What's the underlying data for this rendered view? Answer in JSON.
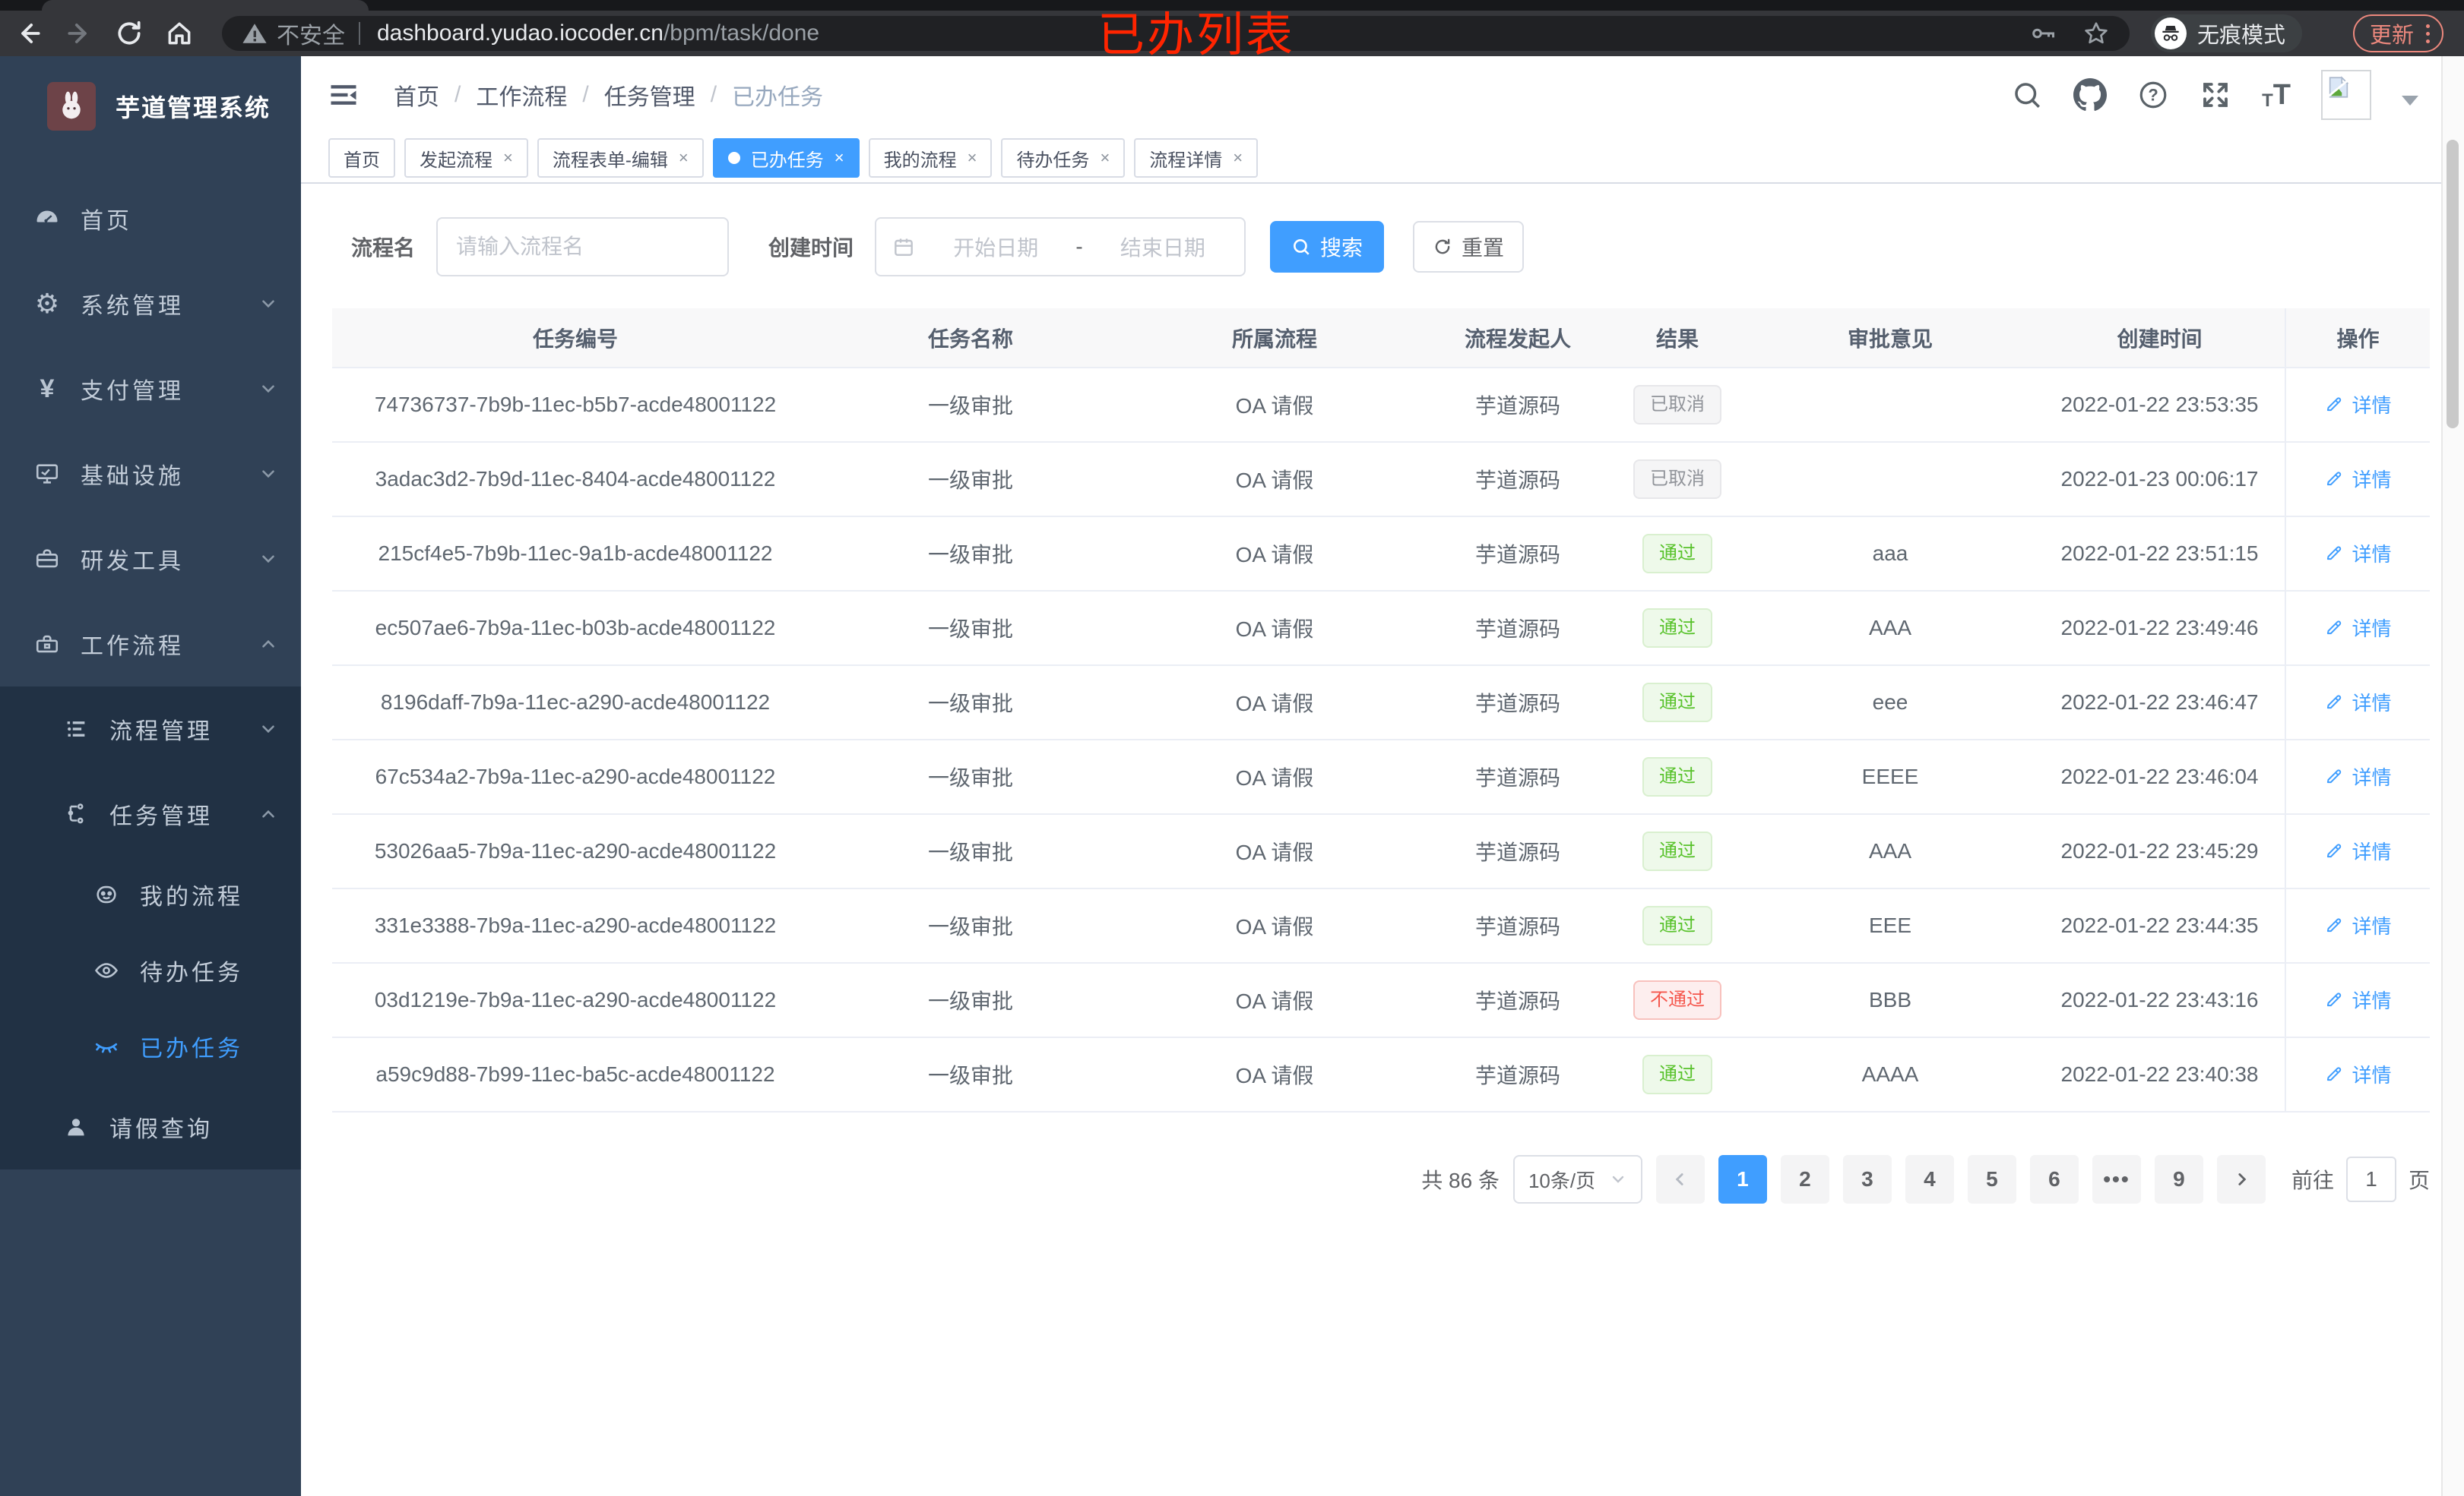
{
  "browser": {
    "security_label": "不安全",
    "url_host": "dashboard.yudao.iocoder.cn",
    "url_path": "/bpm/task/done",
    "incognito_label": "无痕模式",
    "update_label": "更新"
  },
  "annotation": "已办列表",
  "sidebar": {
    "title": "芋道管理系统",
    "items": [
      {
        "label": "首页",
        "icon": "dashboard-icon"
      },
      {
        "label": "系统管理",
        "icon": "gear-icon"
      },
      {
        "label": "支付管理",
        "icon": "yen-icon"
      },
      {
        "label": "基础设施",
        "icon": "monitor-icon"
      },
      {
        "label": "研发工具",
        "icon": "tools-icon"
      },
      {
        "label": "工作流程",
        "icon": "workflow-icon"
      },
      {
        "label": "流程管理",
        "icon": "process-mgmt-icon"
      },
      {
        "label": "任务管理",
        "icon": "task-mgmt-icon"
      },
      {
        "label": "我的流程",
        "icon": "my-process-icon"
      },
      {
        "label": "待办任务",
        "icon": "todo-task-icon"
      },
      {
        "label": "已办任务",
        "icon": "done-task-icon"
      },
      {
        "label": "请假查询",
        "icon": "leave-query-icon"
      }
    ]
  },
  "header": {
    "breadcrumb": [
      "首页",
      "工作流程",
      "任务管理",
      "已办任务"
    ]
  },
  "tabs": [
    {
      "label": "首页",
      "closable": false,
      "active": false
    },
    {
      "label": "发起流程",
      "closable": true,
      "active": false
    },
    {
      "label": "流程表单-编辑",
      "closable": true,
      "active": false
    },
    {
      "label": "已办任务",
      "closable": true,
      "active": true
    },
    {
      "label": "我的流程",
      "closable": true,
      "active": false
    },
    {
      "label": "待办任务",
      "closable": true,
      "active": false
    },
    {
      "label": "流程详情",
      "closable": true,
      "active": false
    }
  ],
  "filters": {
    "name_label": "流程名",
    "name_placeholder": "请输入流程名",
    "time_label": "创建时间",
    "start_placeholder": "开始日期",
    "range_separator": "-",
    "end_placeholder": "结束日期",
    "search_label": "搜索",
    "reset_label": "重置"
  },
  "table": {
    "columns": [
      "任务编号",
      "任务名称",
      "所属流程",
      "流程发起人",
      "结果",
      "审批意见",
      "创建时间",
      "操作"
    ],
    "detail_label": "详情",
    "rows": [
      {
        "id": "74736737-7b9b-11ec-b5b7-acde48001122",
        "name": "一级审批",
        "process": "OA 请假",
        "starter": "芋道源码",
        "result": "已取消",
        "result_type": "cancel",
        "comment": "",
        "created": "2022-01-22 23:53:35"
      },
      {
        "id": "3adac3d2-7b9d-11ec-8404-acde48001122",
        "name": "一级审批",
        "process": "OA 请假",
        "starter": "芋道源码",
        "result": "已取消",
        "result_type": "cancel",
        "comment": "",
        "created": "2022-01-23 00:06:17"
      },
      {
        "id": "215cf4e5-7b9b-11ec-9a1b-acde48001122",
        "name": "一级审批",
        "process": "OA 请假",
        "starter": "芋道源码",
        "result": "通过",
        "result_type": "pass",
        "comment": "aaa",
        "created": "2022-01-22 23:51:15"
      },
      {
        "id": "ec507ae6-7b9a-11ec-b03b-acde48001122",
        "name": "一级审批",
        "process": "OA 请假",
        "starter": "芋道源码",
        "result": "通过",
        "result_type": "pass",
        "comment": "AAA",
        "created": "2022-01-22 23:49:46"
      },
      {
        "id": "8196daff-7b9a-11ec-a290-acde48001122",
        "name": "一级审批",
        "process": "OA 请假",
        "starter": "芋道源码",
        "result": "通过",
        "result_type": "pass",
        "comment": "eee",
        "created": "2022-01-22 23:46:47"
      },
      {
        "id": "67c534a2-7b9a-11ec-a290-acde48001122",
        "name": "一级审批",
        "process": "OA 请假",
        "starter": "芋道源码",
        "result": "通过",
        "result_type": "pass",
        "comment": "EEEE",
        "created": "2022-01-22 23:46:04"
      },
      {
        "id": "53026aa5-7b9a-11ec-a290-acde48001122",
        "name": "一级审批",
        "process": "OA 请假",
        "starter": "芋道源码",
        "result": "通过",
        "result_type": "pass",
        "comment": "AAA",
        "created": "2022-01-22 23:45:29"
      },
      {
        "id": "331e3388-7b9a-11ec-a290-acde48001122",
        "name": "一级审批",
        "process": "OA 请假",
        "starter": "芋道源码",
        "result": "通过",
        "result_type": "pass",
        "comment": "EEE",
        "created": "2022-01-22 23:44:35"
      },
      {
        "id": "03d1219e-7b9a-11ec-a290-acde48001122",
        "name": "一级审批",
        "process": "OA 请假",
        "starter": "芋道源码",
        "result": "不通过",
        "result_type": "reject",
        "comment": "BBB",
        "created": "2022-01-22 23:43:16"
      },
      {
        "id": "a59c9d88-7b99-11ec-ba5c-acde48001122",
        "name": "一级审批",
        "process": "OA 请假",
        "starter": "芋道源码",
        "result": "通过",
        "result_type": "pass",
        "comment": "AAAA",
        "created": "2022-01-22 23:40:38"
      }
    ]
  },
  "pagination": {
    "total_text": "共 86 条",
    "page_size": "10条/页",
    "pages": [
      "1",
      "2",
      "3",
      "4",
      "5",
      "6",
      "•••",
      "9"
    ],
    "active_page": "1",
    "goto_label": "前往",
    "goto_value": "1",
    "goto_suffix": "页"
  },
  "colors": {
    "primary": "#409eff",
    "success": "#58c22b",
    "danger": "#f5564c",
    "cancel": "#909399",
    "annotation": "#ff2400"
  }
}
